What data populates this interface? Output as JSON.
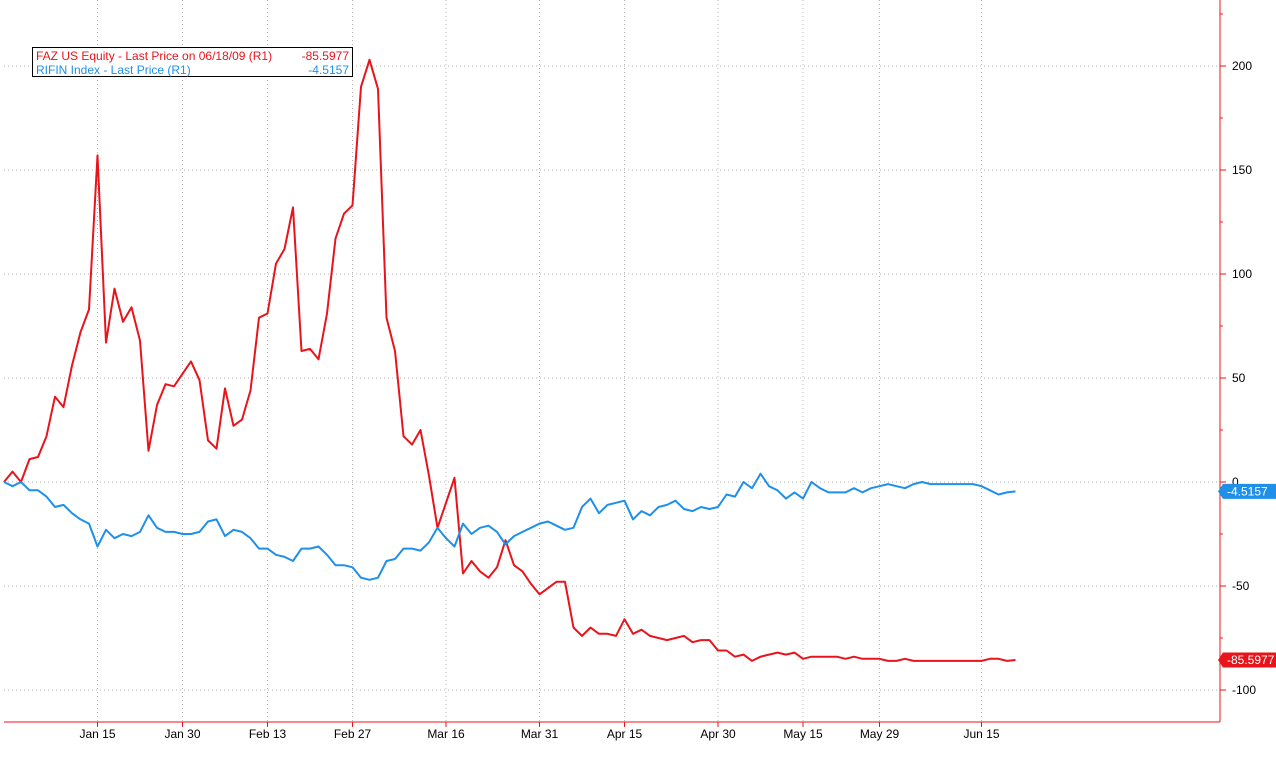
{
  "chart_data": {
    "type": "line",
    "ylim": [
      -115,
      230
    ],
    "yticks": [
      200,
      150,
      100,
      50,
      0,
      -50,
      -100
    ],
    "xticks": [
      {
        "label": "Jan 15",
        "i": 11
      },
      {
        "label": "Jan 30",
        "i": 21
      },
      {
        "label": "Feb 13",
        "i": 31
      },
      {
        "label": "Feb 27",
        "i": 41
      },
      {
        "label": "Mar 16",
        "i": 52
      },
      {
        "label": "Mar 31",
        "i": 63
      },
      {
        "label": "Apr 15",
        "i": 73
      },
      {
        "label": "Apr 30",
        "i": 84
      },
      {
        "label": "May 15",
        "i": 94
      },
      {
        "label": "May 29",
        "i": 103
      },
      {
        "label": "Jun 15",
        "i": 115
      }
    ],
    "grid": true,
    "legend_position": "top-left",
    "series": [
      {
        "name": "FAZ US Equity - Last Price on 06/18/09 (R1)",
        "legend_value": "-85.5977",
        "end_label": "-85.5977",
        "color": "#e8141b",
        "values": [
          0,
          5,
          0,
          11,
          12,
          22,
          41,
          36,
          56,
          72,
          83,
          157,
          67,
          93,
          77,
          84,
          68,
          15,
          37,
          47,
          46,
          52,
          58,
          49,
          20,
          16,
          45,
          27,
          30,
          44,
          79,
          81,
          105,
          112,
          132,
          63,
          64,
          59,
          81,
          117,
          129,
          133,
          190,
          203,
          189,
          79,
          63,
          22,
          18,
          25,
          3,
          -22,
          -10,
          2,
          -44,
          -38,
          -43,
          -46,
          -41,
          -28,
          -40,
          -43,
          -49,
          -54,
          -51,
          -48,
          -48,
          -70,
          -74,
          -70,
          -73,
          -73,
          -74,
          -66,
          -73,
          -71,
          -74,
          -75,
          -76,
          -75,
          -74,
          -77,
          -76,
          -76,
          -81,
          -81,
          -84,
          -83,
          -86,
          -84,
          -83,
          -82,
          -83,
          -82,
          -85,
          -84,
          -84,
          -84,
          -84,
          -85,
          -84,
          -85,
          -85,
          -85,
          -86,
          -86,
          -85,
          -86,
          -86,
          -86,
          -86,
          -86,
          -86,
          -86,
          -86,
          -86,
          -85,
          -85,
          -86,
          -85.6
        ]
      },
      {
        "name": "RIFIN Index - Last Price (R1)",
        "legend_value": "-4.5157",
        "end_label": "-4.5157",
        "color": "#1e90ea",
        "values": [
          0,
          -2,
          0,
          -4,
          -4,
          -7,
          -12,
          -11,
          -15,
          -18,
          -20,
          -31,
          -23,
          -27,
          -25,
          -26,
          -24,
          -16,
          -22,
          -24,
          -24,
          -25,
          -25,
          -24,
          -19,
          -18,
          -26,
          -23,
          -24,
          -27,
          -32,
          -32,
          -35,
          -36,
          -38,
          -32,
          -32,
          -31,
          -35,
          -40,
          -40,
          -41,
          -46,
          -47,
          -46,
          -38,
          -37,
          -32,
          -32,
          -33,
          -29,
          -22,
          -27,
          -31,
          -20,
          -25,
          -22,
          -21,
          -24,
          -30,
          -26,
          -24,
          -22,
          -20,
          -19,
          -21,
          -23,
          -22,
          -12,
          -8,
          -15,
          -11,
          -10,
          -9,
          -18,
          -14,
          -16,
          -12,
          -11,
          -9,
          -13,
          -14,
          -12,
          -13,
          -12,
          -6,
          -7,
          0,
          -3,
          4,
          -2,
          -4,
          -8,
          -5,
          -8,
          0,
          -3,
          -5,
          -5,
          -5,
          -3,
          -5,
          -3,
          -2,
          -1,
          -2,
          -3,
          -1,
          0,
          -1,
          -1,
          -1,
          -1,
          -1,
          -1,
          -2,
          -4,
          -6,
          -5,
          -4.5
        ]
      }
    ]
  }
}
